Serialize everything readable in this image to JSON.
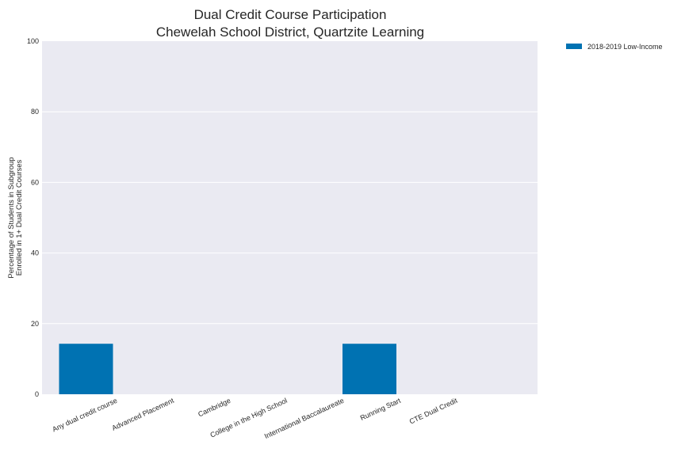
{
  "chart_data": {
    "type": "bar",
    "title_lines": [
      "Dual Credit Course Participation",
      "Chewelah School District, Quartzite Learning"
    ],
    "ylabel_lines": [
      "Percentage of Students in Subgroup",
      "Enrolled in 1+ Dual Credit Courses"
    ],
    "xlabel": "",
    "categories": [
      "Any dual credit course",
      "Advanced Placement",
      "Cambridge",
      "College in the High School",
      "International Baccalaureate",
      "Running Start",
      "CTE Dual Credit"
    ],
    "series": [
      {
        "name": "2018-2019 Low-Income",
        "color": "#0072b2",
        "values": [
          14.3,
          0,
          0,
          0,
          0,
          14.3,
          0
        ]
      }
    ],
    "ylim": [
      0,
      100
    ],
    "yticks": [
      0,
      20,
      40,
      60,
      80,
      100
    ],
    "grid": true,
    "legend_position": "outside-top-right",
    "plot_background": "#eaeaf2"
  }
}
